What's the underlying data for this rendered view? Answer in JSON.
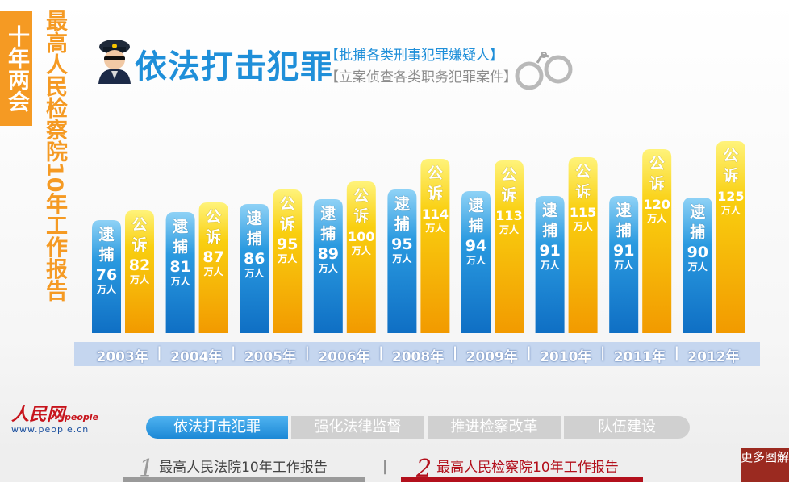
{
  "side": {
    "tag": "十年两会",
    "title": "最高人民检察院10年工作报告"
  },
  "header": {
    "title": "依法打击犯罪",
    "sub1": "【批捕各类刑事犯罪嫌疑人】",
    "sub2": "【立案侦查各类职务犯罪案件】"
  },
  "chart_data": {
    "type": "bar",
    "categories": [
      "2003年",
      "2004年",
      "2005年",
      "2006年",
      "2008年",
      "2009年",
      "2010年",
      "2011年",
      "2012年"
    ],
    "unit": "万人",
    "series": [
      {
        "name": "逮捕",
        "values": [
          76,
          81,
          86,
          89,
          95,
          94,
          91,
          91,
          90
        ],
        "color": "#1e8fdb"
      },
      {
        "name": "公诉",
        "values": [
          82,
          87,
          95,
          100,
          114,
          113,
          115,
          120,
          125
        ],
        "color": "#f5b400"
      }
    ]
  },
  "logo": {
    "mark": "人民网",
    "sub": "people",
    "url": "www.people.cn"
  },
  "tabs": [
    "依法打击犯罪",
    "强化法律监督",
    "推进检察改革",
    "队伍建设"
  ],
  "footer": {
    "report1_num": "1",
    "report1": "最高人民法院10年工作报告",
    "report2_num": "2",
    "report2": "最高人民检察院10年工作报告",
    "more": "更多图解"
  },
  "colors": {
    "accent_blue": "#1f8fd9",
    "accent_orange": "#f59a23",
    "brand_red": "#b3101c"
  }
}
